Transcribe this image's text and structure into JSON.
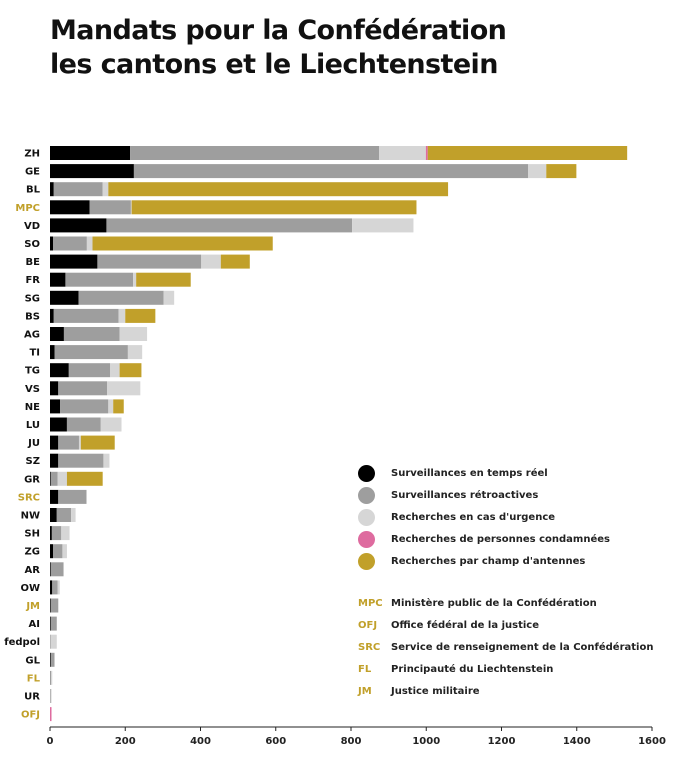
{
  "title": {
    "line1": "Mandats pour la Confédération",
    "line2": "les cantons et le Liechtenstein"
  },
  "colors": {
    "realtime": "#000000",
    "retro": "#9e9e9e",
    "urgence": "#d6d6d6",
    "condamnees": "#de6b9f",
    "antennes": "#c1a02a",
    "federal_label": "#c1a02a",
    "canton_label": "#111111"
  },
  "legend": [
    {
      "key": "realtime",
      "label": "Surveillances en temps réel",
      "color_key": "realtime"
    },
    {
      "key": "retro",
      "label": "Surveillances rétroactives",
      "color_key": "retro"
    },
    {
      "key": "urgence",
      "label": "Recherches en cas d'urgence",
      "color_key": "urgence"
    },
    {
      "key": "condamnees",
      "label": "Recherches de personnes condamnées",
      "color_key": "condamnees"
    },
    {
      "key": "antennes",
      "label": "Recherches par champ d'antennes",
      "color_key": "antennes"
    }
  ],
  "abbreviations": [
    {
      "code": "MPC",
      "text": "Ministère public de la Confédération"
    },
    {
      "code": "OFJ",
      "text": "Office fédéral de la justice"
    },
    {
      "code": "SRC",
      "text": "Service de renseignement de la Confédération"
    },
    {
      "code": "FL",
      "text": "Principauté du Liechtenstein"
    },
    {
      "code": "JM",
      "text": "Justice militaire"
    }
  ],
  "chart_data": {
    "type": "bar",
    "orientation": "horizontal",
    "stacked": true,
    "xlim": [
      0,
      1600
    ],
    "xticks": [
      0,
      200,
      400,
      600,
      800,
      1000,
      1200,
      1400,
      1600
    ],
    "grid": false,
    "legend_position": "bottom-right",
    "series_order": [
      "realtime",
      "retro",
      "urgence",
      "condamnees",
      "antennes"
    ],
    "categories": [
      {
        "label": "ZH",
        "federal": false,
        "values": [
          213,
          662,
          124,
          5,
          530
        ]
      },
      {
        "label": "GE",
        "federal": false,
        "values": [
          223,
          1048,
          48,
          0,
          80
        ]
      },
      {
        "label": "BL",
        "federal": false,
        "values": [
          10,
          130,
          15,
          0,
          903
        ]
      },
      {
        "label": "MPC",
        "federal": true,
        "values": [
          105,
          110,
          2,
          0,
          757
        ]
      },
      {
        "label": "VD",
        "federal": false,
        "values": [
          150,
          653,
          163,
          0,
          0
        ]
      },
      {
        "label": "SO",
        "federal": false,
        "values": [
          8,
          90,
          15,
          0,
          479
        ]
      },
      {
        "label": "BE",
        "federal": false,
        "values": [
          126,
          276,
          52,
          0,
          77
        ]
      },
      {
        "label": "FR",
        "federal": false,
        "values": [
          41,
          180,
          8,
          0,
          145
        ]
      },
      {
        "label": "SG",
        "federal": false,
        "values": [
          76,
          226,
          28,
          0,
          0
        ]
      },
      {
        "label": "BS",
        "federal": false,
        "values": [
          10,
          172,
          18,
          0,
          80
        ]
      },
      {
        "label": "AG",
        "federal": false,
        "values": [
          37,
          148,
          73,
          0,
          0
        ]
      },
      {
        "label": "TI",
        "federal": false,
        "values": [
          12,
          195,
          38,
          0,
          0
        ]
      },
      {
        "label": "TG",
        "federal": false,
        "values": [
          50,
          110,
          25,
          0,
          58
        ]
      },
      {
        "label": "VS",
        "federal": false,
        "values": [
          22,
          130,
          88,
          0,
          0
        ]
      },
      {
        "label": "NE",
        "federal": false,
        "values": [
          27,
          128,
          13,
          0,
          28
        ]
      },
      {
        "label": "LU",
        "federal": false,
        "values": [
          45,
          90,
          55,
          0,
          0
        ]
      },
      {
        "label": "JU",
        "federal": false,
        "values": [
          22,
          55,
          5,
          0,
          90
        ]
      },
      {
        "label": "SZ",
        "federal": false,
        "values": [
          22,
          120,
          16,
          0,
          0
        ]
      },
      {
        "label": "GR",
        "federal": false,
        "values": [
          2,
          18,
          25,
          0,
          95
        ]
      },
      {
        "label": "SRC",
        "federal": true,
        "values": [
          22,
          75,
          0,
          0,
          0
        ]
      },
      {
        "label": "NW",
        "federal": false,
        "values": [
          18,
          38,
          12,
          0,
          0
        ]
      },
      {
        "label": "SH",
        "federal": false,
        "values": [
          5,
          25,
          22,
          0,
          0
        ]
      },
      {
        "label": "ZG",
        "federal": false,
        "values": [
          8,
          25,
          12,
          0,
          0
        ]
      },
      {
        "label": "AR",
        "federal": false,
        "values": [
          2,
          34,
          0,
          0,
          0
        ]
      },
      {
        "label": "OW",
        "federal": false,
        "values": [
          6,
          14,
          6,
          0,
          0
        ]
      },
      {
        "label": "JM",
        "federal": true,
        "values": [
          2,
          20,
          0,
          0,
          0
        ]
      },
      {
        "label": "AI",
        "federal": false,
        "values": [
          2,
          16,
          0,
          0,
          0
        ]
      },
      {
        "label": "fedpol",
        "federal": false,
        "values": [
          0,
          2,
          16,
          0,
          0
        ]
      },
      {
        "label": "GL",
        "federal": false,
        "values": [
          2,
          10,
          0,
          0,
          0
        ]
      },
      {
        "label": "FL",
        "federal": true,
        "values": [
          0,
          3,
          3,
          0,
          0
        ]
      },
      {
        "label": "UR",
        "federal": false,
        "values": [
          0,
          2,
          2,
          0,
          0
        ]
      },
      {
        "label": "OFJ",
        "federal": true,
        "values": [
          0,
          0,
          0,
          4,
          0
        ]
      }
    ]
  }
}
